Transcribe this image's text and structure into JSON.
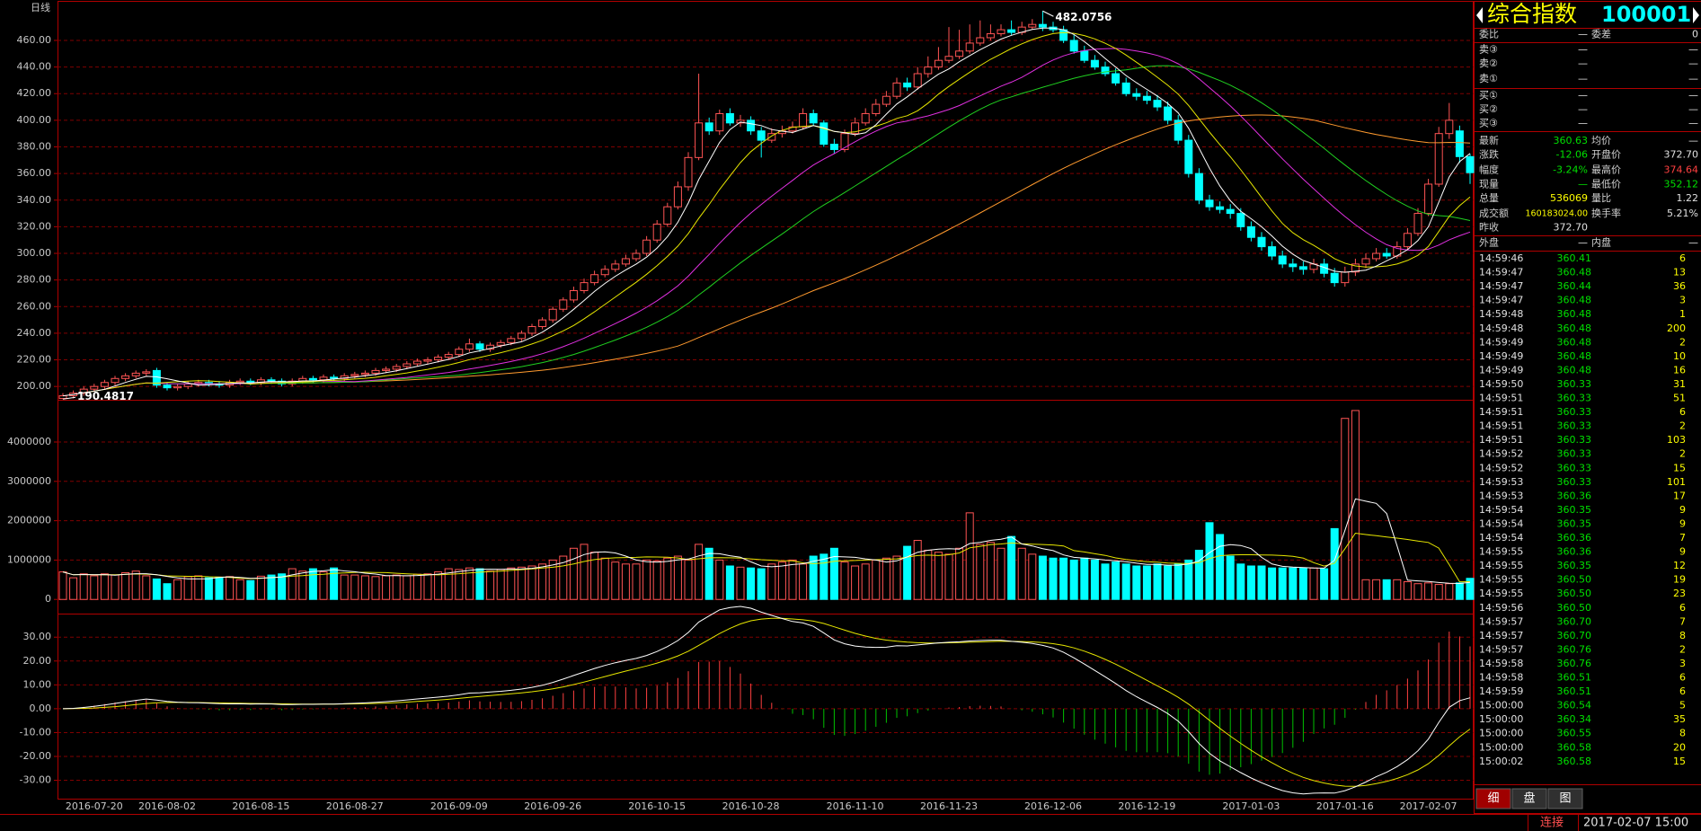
{
  "header": {
    "period": "日线",
    "title": "综合指数",
    "code": "100001"
  },
  "chart_data": [
    {
      "type": "candlestick",
      "categories": [
        null,
        null,
        null,
        "2016-07-20",
        null,
        null,
        null,
        null,
        null,
        null,
        "2016-08-02",
        null,
        null,
        null,
        null,
        null,
        null,
        null,
        null,
        "2016-08-15",
        null,
        null,
        null,
        null,
        null,
        null,
        null,
        null,
        "2016-08-27",
        null,
        null,
        null,
        null,
        null,
        null,
        null,
        null,
        null,
        "2016-09-09",
        null,
        null,
        null,
        null,
        null,
        null,
        null,
        null,
        "2016-09-26",
        null,
        null,
        null,
        null,
        null,
        null,
        null,
        null,
        null,
        "2016-10-15",
        null,
        null,
        null,
        null,
        null,
        null,
        null,
        null,
        "2016-10-28",
        null,
        null,
        null,
        null,
        null,
        null,
        null,
        null,
        null,
        "2016-11-10",
        null,
        null,
        null,
        null,
        null,
        null,
        null,
        null,
        "2016-11-23",
        null,
        null,
        null,
        null,
        null,
        null,
        null,
        null,
        null,
        "2016-12-06",
        null,
        null,
        null,
        null,
        null,
        null,
        null,
        null,
        "2016-12-19",
        null,
        null,
        null,
        null,
        null,
        null,
        null,
        null,
        null,
        "2017-01-03",
        null,
        null,
        null,
        null,
        null,
        null,
        null,
        null,
        "2017-01-16",
        null,
        null,
        null,
        null,
        null,
        null,
        null,
        "2017-02-07",
        null,
        null,
        null,
        null
      ],
      "open": [
        191,
        193,
        195,
        198,
        200,
        203,
        206,
        208,
        210,
        212,
        201,
        199,
        200,
        202,
        203,
        202,
        201,
        203,
        204,
        203,
        205,
        204,
        202,
        204,
        206,
        205,
        207,
        206,
        208,
        209,
        210,
        212,
        213,
        215,
        217,
        219,
        220,
        222,
        224,
        228,
        232,
        228,
        231,
        233,
        236,
        240,
        245,
        250,
        258,
        265,
        272,
        278,
        284,
        288,
        292,
        296,
        300,
        310,
        322,
        335,
        350,
        372,
        398,
        392,
        405,
        398,
        400,
        392,
        385,
        390,
        392,
        395,
        405,
        398,
        382,
        378,
        390,
        398,
        405,
        412,
        418,
        428,
        425,
        435,
        440,
        445,
        448,
        452,
        458,
        462,
        465,
        468,
        466,
        470,
        472,
        470,
        468,
        460,
        452,
        445,
        440,
        435,
        428,
        420,
        418,
        415,
        410,
        400,
        385,
        360,
        340,
        335,
        333,
        330,
        320,
        312,
        305,
        298,
        292,
        290,
        288,
        292,
        285,
        278,
        286,
        292,
        296,
        300,
        298,
        305,
        315,
        330,
        352,
        390,
        392,
        372.7
      ],
      "high": [
        195,
        197,
        200,
        202,
        205,
        208,
        210,
        212,
        213,
        214,
        203,
        202,
        204,
        205,
        205,
        204,
        205,
        206,
        206,
        207,
        207,
        206,
        206,
        208,
        208,
        209,
        209,
        210,
        211,
        212,
        214,
        215,
        217,
        219,
        221,
        222,
        224,
        226,
        230,
        236,
        234,
        233,
        235,
        238,
        242,
        247,
        252,
        260,
        267,
        275,
        281,
        287,
        291,
        295,
        299,
        303,
        313,
        325,
        338,
        354,
        376,
        435,
        402,
        408,
        409,
        404,
        403,
        395,
        394,
        396,
        399,
        409,
        408,
        400,
        386,
        393,
        402,
        409,
        416,
        422,
        432,
        432,
        440,
        448,
        455,
        470,
        468,
        472,
        475,
        472,
        472,
        475,
        474,
        476,
        482.0756,
        474,
        471,
        464,
        456,
        449,
        444,
        439,
        432,
        424,
        422,
        419,
        414,
        404,
        389,
        364,
        344,
        339,
        337,
        334,
        324,
        316,
        309,
        302,
        296,
        294,
        296,
        296,
        289,
        290,
        296,
        300,
        304,
        304,
        309,
        319,
        334,
        356,
        395,
        413,
        396,
        374.64
      ],
      "low": [
        190.4817,
        191,
        193,
        196,
        198,
        201,
        204,
        206,
        208,
        199,
        197,
        197,
        198,
        200,
        200,
        199,
        199,
        201,
        201,
        201,
        202,
        200,
        200,
        202,
        203,
        203,
        204,
        204,
        206,
        207,
        208,
        210,
        211,
        213,
        215,
        217,
        218,
        220,
        222,
        226,
        226,
        226,
        229,
        231,
        234,
        238,
        243,
        248,
        256,
        263,
        270,
        276,
        282,
        286,
        290,
        294,
        298,
        308,
        320,
        333,
        347,
        370,
        389,
        389,
        396,
        395,
        389,
        372,
        383,
        387,
        390,
        393,
        396,
        380,
        375,
        376,
        388,
        396,
        403,
        410,
        416,
        422,
        423,
        432,
        438,
        443,
        446,
        450,
        456,
        460,
        463,
        464,
        464,
        468,
        467,
        466,
        458,
        450,
        443,
        438,
        433,
        426,
        418,
        415,
        412,
        407,
        397,
        382,
        357,
        337,
        332,
        330,
        326,
        317,
        309,
        302,
        295,
        289,
        286,
        284,
        285,
        282,
        275,
        275,
        283,
        289,
        294,
        296,
        296,
        303,
        313,
        328,
        350,
        386,
        368,
        352.12
      ],
      "close": [
        193,
        195,
        198,
        200,
        203,
        206,
        208,
        210,
        211,
        201,
        199,
        200,
        202,
        203,
        202,
        201,
        203,
        204,
        203,
        205,
        204,
        202,
        204,
        206,
        205,
        207,
        206,
        208,
        209,
        210,
        212,
        213,
        215,
        217,
        219,
        220,
        222,
        224,
        228,
        232,
        228,
        231,
        233,
        236,
        240,
        245,
        250,
        258,
        265,
        272,
        278,
        284,
        288,
        292,
        296,
        300,
        310,
        322,
        335,
        350,
        372,
        398,
        392,
        405,
        398,
        400,
        392,
        385,
        390,
        392,
        395,
        405,
        398,
        382,
        378,
        390,
        398,
        405,
        412,
        418,
        428,
        425,
        435,
        440,
        445,
        448,
        452,
        458,
        462,
        465,
        468,
        466,
        470,
        472,
        470,
        468,
        460,
        452,
        445,
        440,
        435,
        428,
        420,
        418,
        415,
        410,
        400,
        385,
        360,
        340,
        335,
        333,
        330,
        320,
        312,
        305,
        298,
        292,
        290,
        288,
        292,
        285,
        278,
        286,
        292,
        296,
        300,
        298,
        305,
        315,
        330,
        352,
        390,
        400,
        372.7,
        360.63
      ],
      "ylim": [
        190,
        489
      ],
      "yticks": [
        {
          "value": 200,
          "label": "200.00"
        },
        {
          "value": 220,
          "label": "220.00"
        },
        {
          "value": 240,
          "label": "240.00"
        },
        {
          "value": 260,
          "label": "260.00"
        },
        {
          "value": 280,
          "label": "280.00"
        },
        {
          "value": 300,
          "label": "300.00"
        },
        {
          "value": 320,
          "label": "320.00"
        },
        {
          "value": 340,
          "label": "340.00"
        },
        {
          "value": 360,
          "label": "360.00"
        },
        {
          "value": 380,
          "label": "380.00"
        },
        {
          "value": 400,
          "label": "400.00"
        },
        {
          "value": 420,
          "label": "420.00"
        },
        {
          "value": 440,
          "label": "440.00"
        },
        {
          "value": 460,
          "label": "460.00"
        }
      ],
      "grid": true
    },
    {
      "type": "bar",
      "values": [
        700000,
        550000,
        650000,
        600000,
        650000,
        620000,
        680000,
        720000,
        600000,
        520000,
        400000,
        500000,
        580000,
        600000,
        550000,
        560000,
        580000,
        500000,
        480000,
        590000,
        620000,
        650000,
        780000,
        720000,
        780000,
        700000,
        800000,
        620000,
        620000,
        600000,
        580000,
        600000,
        620000,
        600000,
        640000,
        650000,
        700000,
        780000,
        760000,
        800000,
        780000,
        720000,
        760000,
        800000,
        820000,
        850000,
        900000,
        1000000,
        1100000,
        1300000,
        1400000,
        1200000,
        1050000,
        950000,
        900000,
        900000,
        1000000,
        980000,
        1050000,
        1100000,
        1000000,
        1400000,
        1300000,
        1000000,
        850000,
        820000,
        800000,
        780000,
        900000,
        950000,
        1000000,
        900000,
        1100000,
        1150000,
        1300000,
        950000,
        850000,
        900000,
        1000000,
        1050000,
        1100000,
        1350000,
        1500000,
        1250000,
        1200000,
        1150000,
        1300000,
        2200000,
        1400000,
        1450000,
        1300000,
        1600000,
        1300000,
        1150000,
        1100000,
        1050000,
        1050000,
        1000000,
        1050000,
        1000000,
        900000,
        950000,
        900000,
        850000,
        850000,
        900000,
        850000,
        900000,
        1000000,
        1250000,
        1950000,
        1650000,
        1100000,
        900000,
        850000,
        850000,
        800000,
        800000,
        800000,
        800000,
        800000,
        780000,
        1800000,
        4600000,
        4800000,
        500000,
        500000,
        500000,
        500000,
        450000,
        400000,
        420000,
        380000,
        400000,
        420000,
        536069
      ],
      "ylim": [
        -360000,
        5050000
      ],
      "yticks": [
        0,
        1000000,
        2000000,
        3000000,
        4000000
      ],
      "grid": true
    },
    {
      "type": "macd",
      "ylim": [
        -37.7,
        39.5
      ],
      "yticks": [
        {
          "value": -30,
          "label": "-30.00"
        },
        {
          "value": -20,
          "label": "-20.00"
        },
        {
          "value": -10,
          "label": "-10.00"
        },
        {
          "value": 0,
          "label": "0.00"
        },
        {
          "value": 10,
          "label": "10.00"
        },
        {
          "value": 20,
          "label": "20.00"
        },
        {
          "value": 30,
          "label": "30.00"
        }
      ],
      "grid": true
    }
  ],
  "quote": {
    "rows": [
      [
        "委比",
        "—",
        "委差",
        "0"
      ],
      [
        "卖③",
        "—",
        "—"
      ],
      [
        "卖②",
        "—",
        "—"
      ],
      [
        "卖①",
        "—",
        "—"
      ],
      [
        "买①",
        "—",
        "—"
      ],
      [
        "买②",
        "—",
        "—"
      ],
      [
        "买③",
        "—",
        "—"
      ],
      [
        "最新",
        "360.63",
        "均价",
        "—"
      ],
      [
        "涨跌",
        "-12.06",
        "开盘价",
        "372.70"
      ],
      [
        "幅度",
        "-3.24%",
        "最高价",
        "374.64"
      ],
      [
        "现量",
        "—",
        "最低价",
        "352.12"
      ],
      [
        "总量",
        "536069",
        "量比",
        "1.22"
      ],
      [
        "成交额",
        "160183024.00",
        "换手率",
        "5.21%"
      ],
      [
        "昨收",
        "372.70"
      ]
    ]
  },
  "trades": {
    "header": [
      "外盘",
      "—",
      "内盘",
      "—"
    ],
    "rows": [
      [
        "14:59:46",
        "360.41",
        "6"
      ],
      [
        "14:59:47",
        "360.48",
        "13"
      ],
      [
        "14:59:47",
        "360.44",
        "36"
      ],
      [
        "14:59:47",
        "360.48",
        "3"
      ],
      [
        "14:59:48",
        "360.48",
        "1"
      ],
      [
        "14:59:48",
        "360.48",
        "200"
      ],
      [
        "14:59:49",
        "360.48",
        "2"
      ],
      [
        "14:59:49",
        "360.48",
        "10"
      ],
      [
        "14:59:49",
        "360.48",
        "16"
      ],
      [
        "14:59:50",
        "360.33",
        "31"
      ],
      [
        "14:59:51",
        "360.33",
        "51"
      ],
      [
        "14:59:51",
        "360.33",
        "6"
      ],
      [
        "14:59:51",
        "360.33",
        "2"
      ],
      [
        "14:59:51",
        "360.33",
        "103"
      ],
      [
        "14:59:52",
        "360.33",
        "2"
      ],
      [
        "14:59:52",
        "360.33",
        "15"
      ],
      [
        "14:59:53",
        "360.33",
        "101"
      ],
      [
        "14:59:53",
        "360.36",
        "17"
      ],
      [
        "14:59:54",
        "360.35",
        "9"
      ],
      [
        "14:59:54",
        "360.35",
        "9"
      ],
      [
        "14:59:54",
        "360.36",
        "7"
      ],
      [
        "14:59:55",
        "360.36",
        "9"
      ],
      [
        "14:59:55",
        "360.35",
        "12"
      ],
      [
        "14:59:55",
        "360.50",
        "19"
      ],
      [
        "14:59:55",
        "360.50",
        "23"
      ],
      [
        "14:59:56",
        "360.50",
        "6"
      ],
      [
        "14:59:57",
        "360.70",
        "7"
      ],
      [
        "14:59:57",
        "360.70",
        "8"
      ],
      [
        "14:59:57",
        "360.76",
        "2"
      ],
      [
        "14:59:58",
        "360.76",
        "3"
      ],
      [
        "14:59:58",
        "360.51",
        "6"
      ],
      [
        "14:59:59",
        "360.51",
        "6"
      ],
      [
        "15:00:00",
        "360.54",
        "5"
      ],
      [
        "15:00:00",
        "360.34",
        "35"
      ],
      [
        "15:00:00",
        "360.55",
        "8"
      ],
      [
        "15:00:00",
        "360.58",
        "20"
      ],
      [
        "15:00:02",
        "360.58",
        "15"
      ]
    ]
  },
  "tabs": [
    "细",
    "盘",
    "图"
  ],
  "status": {
    "connection": "连接",
    "datetime": "2017-02-07 15:00"
  }
}
